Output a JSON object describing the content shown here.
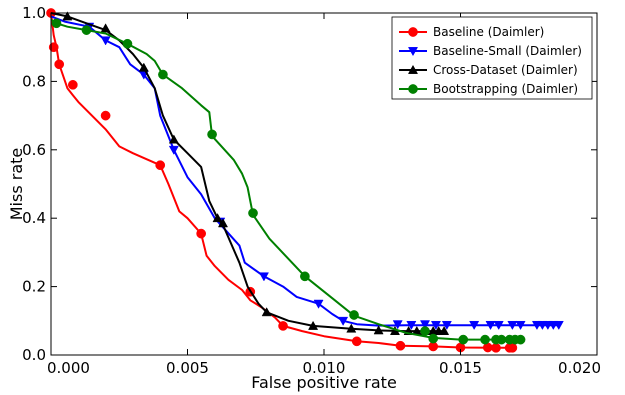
{
  "chart_data": {
    "type": "line",
    "title": "",
    "xlabel": "False positive rate",
    "ylabel": "Miss rate",
    "xlim": [
      0.0,
      0.02
    ],
    "ylim": [
      0.0,
      1.0
    ],
    "xticks": [
      "0.000",
      "0.005",
      "0.010",
      "0.015",
      "0.020"
    ],
    "yticks": [
      "0.0",
      "0.2",
      "0.4",
      "0.6",
      "0.8",
      "1.0"
    ],
    "grid": false,
    "legend_position": "top-right",
    "series": [
      {
        "name": "Baseline (Daimler)",
        "color": "#ff0000",
        "marker": "circle",
        "points": [
          [
            0.0,
            1.0
          ],
          [
            0.0001,
            0.935
          ],
          [
            0.0002,
            0.9
          ],
          [
            0.0003,
            0.85
          ],
          [
            0.0006,
            0.78
          ],
          [
            0.0008,
            0.76
          ],
          [
            0.001,
            0.74
          ],
          [
            0.0015,
            0.7
          ],
          [
            0.002,
            0.66
          ],
          [
            0.0025,
            0.61
          ],
          [
            0.003,
            0.59
          ],
          [
            0.004,
            0.555
          ],
          [
            0.0043,
            0.5
          ],
          [
            0.0047,
            0.42
          ],
          [
            0.005,
            0.4
          ],
          [
            0.0055,
            0.355
          ],
          [
            0.0057,
            0.29
          ],
          [
            0.006,
            0.26
          ],
          [
            0.0065,
            0.22
          ],
          [
            0.007,
            0.19
          ],
          [
            0.0073,
            0.16
          ],
          [
            0.0077,
            0.14
          ],
          [
            0.0082,
            0.11
          ],
          [
            0.0085,
            0.085
          ],
          [
            0.0092,
            0.07
          ],
          [
            0.01,
            0.055
          ],
          [
            0.0112,
            0.04
          ],
          [
            0.012,
            0.035
          ],
          [
            0.0128,
            0.027
          ],
          [
            0.014,
            0.025
          ],
          [
            0.015,
            0.022
          ],
          [
            0.0162,
            0.021
          ],
          [
            0.0168,
            0.021
          ],
          [
            0.017,
            0.021
          ]
        ],
        "marker_points": [
          [
            0.0,
            1.0
          ],
          [
            0.0001,
            0.9
          ],
          [
            0.0003,
            0.85
          ],
          [
            0.0008,
            0.79
          ],
          [
            0.002,
            0.7
          ],
          [
            0.004,
            0.555
          ],
          [
            0.0055,
            0.355
          ],
          [
            0.0073,
            0.185
          ],
          [
            0.0085,
            0.085
          ],
          [
            0.0112,
            0.04
          ],
          [
            0.0128,
            0.027
          ],
          [
            0.014,
            0.025
          ],
          [
            0.015,
            0.022
          ],
          [
            0.016,
            0.022
          ],
          [
            0.0163,
            0.021
          ],
          [
            0.0168,
            0.021
          ],
          [
            0.0169,
            0.021
          ]
        ]
      },
      {
        "name": "Baseline-Small (Daimler)",
        "color": "#0000ff",
        "marker": "triangle-down",
        "points": [
          [
            0.0,
            0.99
          ],
          [
            0.0005,
            0.975
          ],
          [
            0.0014,
            0.96
          ],
          [
            0.002,
            0.92
          ],
          [
            0.0025,
            0.9
          ],
          [
            0.0029,
            0.85
          ],
          [
            0.0034,
            0.82
          ],
          [
            0.0038,
            0.78
          ],
          [
            0.004,
            0.7
          ],
          [
            0.0045,
            0.6
          ],
          [
            0.005,
            0.52
          ],
          [
            0.0055,
            0.47
          ],
          [
            0.006,
            0.4
          ],
          [
            0.0069,
            0.32
          ],
          [
            0.0071,
            0.27
          ],
          [
            0.0078,
            0.23
          ],
          [
            0.0085,
            0.2
          ],
          [
            0.009,
            0.17
          ],
          [
            0.0098,
            0.15
          ],
          [
            0.0103,
            0.12
          ],
          [
            0.0107,
            0.1
          ],
          [
            0.0112,
            0.09
          ],
          [
            0.012,
            0.086
          ],
          [
            0.013,
            0.087
          ],
          [
            0.015,
            0.087
          ],
          [
            0.017,
            0.087
          ],
          [
            0.0186,
            0.087
          ]
        ],
        "marker_points": [
          [
            0.0014,
            0.96
          ],
          [
            0.002,
            0.92
          ],
          [
            0.0034,
            0.82
          ],
          [
            0.0045,
            0.6
          ],
          [
            0.0062,
            0.39
          ],
          [
            0.0078,
            0.23
          ],
          [
            0.0098,
            0.15
          ],
          [
            0.0107,
            0.1
          ],
          [
            0.0127,
            0.09
          ],
          [
            0.0132,
            0.088
          ],
          [
            0.0137,
            0.09
          ],
          [
            0.0141,
            0.088
          ],
          [
            0.0145,
            0.088
          ],
          [
            0.0155,
            0.088
          ],
          [
            0.0161,
            0.088
          ],
          [
            0.0164,
            0.088
          ],
          [
            0.0169,
            0.088
          ],
          [
            0.0172,
            0.088
          ],
          [
            0.0178,
            0.088
          ],
          [
            0.018,
            0.088
          ],
          [
            0.0182,
            0.088
          ],
          [
            0.0184,
            0.088
          ],
          [
            0.0186,
            0.088
          ]
        ]
      },
      {
        "name": "Cross-Dataset (Daimler)",
        "color": "#000000",
        "marker": "triangle-up",
        "points": [
          [
            0.0,
            1.0
          ],
          [
            0.0006,
            0.99
          ],
          [
            0.0013,
            0.97
          ],
          [
            0.002,
            0.95
          ],
          [
            0.0025,
            0.92
          ],
          [
            0.003,
            0.88
          ],
          [
            0.0034,
            0.84
          ],
          [
            0.0038,
            0.78
          ],
          [
            0.0041,
            0.7
          ],
          [
            0.0045,
            0.63
          ],
          [
            0.005,
            0.59
          ],
          [
            0.0055,
            0.55
          ],
          [
            0.0058,
            0.45
          ],
          [
            0.0061,
            0.4
          ],
          [
            0.0063,
            0.38
          ],
          [
            0.0069,
            0.27
          ],
          [
            0.0072,
            0.2
          ],
          [
            0.0076,
            0.15
          ],
          [
            0.0079,
            0.125
          ],
          [
            0.0087,
            0.1
          ],
          [
            0.0096,
            0.085
          ],
          [
            0.011,
            0.077
          ],
          [
            0.012,
            0.072
          ],
          [
            0.013,
            0.07
          ],
          [
            0.0144,
            0.07
          ]
        ],
        "marker_points": [
          [
            0.0006,
            0.99
          ],
          [
            0.002,
            0.955
          ],
          [
            0.0034,
            0.84
          ],
          [
            0.0045,
            0.63
          ],
          [
            0.0061,
            0.4
          ],
          [
            0.0063,
            0.385
          ],
          [
            0.0079,
            0.125
          ],
          [
            0.0096,
            0.085
          ],
          [
            0.011,
            0.077
          ],
          [
            0.012,
            0.072
          ],
          [
            0.0126,
            0.07
          ],
          [
            0.0131,
            0.07
          ],
          [
            0.0134,
            0.07
          ],
          [
            0.0137,
            0.07
          ],
          [
            0.014,
            0.07
          ],
          [
            0.0142,
            0.07
          ],
          [
            0.0144,
            0.07
          ]
        ]
      },
      {
        "name": "Bootstrapping (Daimler)",
        "color": "#008000",
        "marker": "circle",
        "points": [
          [
            0.0,
            0.98
          ],
          [
            0.0002,
            0.97
          ],
          [
            0.0006,
            0.96
          ],
          [
            0.0013,
            0.95
          ],
          [
            0.002,
            0.94
          ],
          [
            0.0028,
            0.91
          ],
          [
            0.0035,
            0.88
          ],
          [
            0.0038,
            0.86
          ],
          [
            0.0041,
            0.82
          ],
          [
            0.0048,
            0.78
          ],
          [
            0.0055,
            0.73
          ],
          [
            0.0058,
            0.71
          ],
          [
            0.0059,
            0.64
          ],
          [
            0.0067,
            0.57
          ],
          [
            0.007,
            0.53
          ],
          [
            0.0072,
            0.49
          ],
          [
            0.0074,
            0.41
          ],
          [
            0.008,
            0.34
          ],
          [
            0.0093,
            0.23
          ],
          [
            0.0104,
            0.16
          ],
          [
            0.0111,
            0.115
          ],
          [
            0.012,
            0.09
          ],
          [
            0.013,
            0.065
          ],
          [
            0.014,
            0.05
          ],
          [
            0.015,
            0.045
          ],
          [
            0.016,
            0.045
          ],
          [
            0.0172,
            0.045
          ]
        ],
        "marker_points": [
          [
            0.0002,
            0.97
          ],
          [
            0.0013,
            0.95
          ],
          [
            0.0028,
            0.91
          ],
          [
            0.0041,
            0.82
          ],
          [
            0.0059,
            0.645
          ],
          [
            0.0074,
            0.415
          ],
          [
            0.0093,
            0.23
          ],
          [
            0.0111,
            0.117
          ],
          [
            0.0137,
            0.07
          ],
          [
            0.014,
            0.048
          ],
          [
            0.0151,
            0.045
          ],
          [
            0.0159,
            0.045
          ],
          [
            0.0163,
            0.045
          ],
          [
            0.0165,
            0.045
          ],
          [
            0.0168,
            0.045
          ],
          [
            0.017,
            0.045
          ],
          [
            0.0172,
            0.045
          ]
        ]
      }
    ]
  }
}
